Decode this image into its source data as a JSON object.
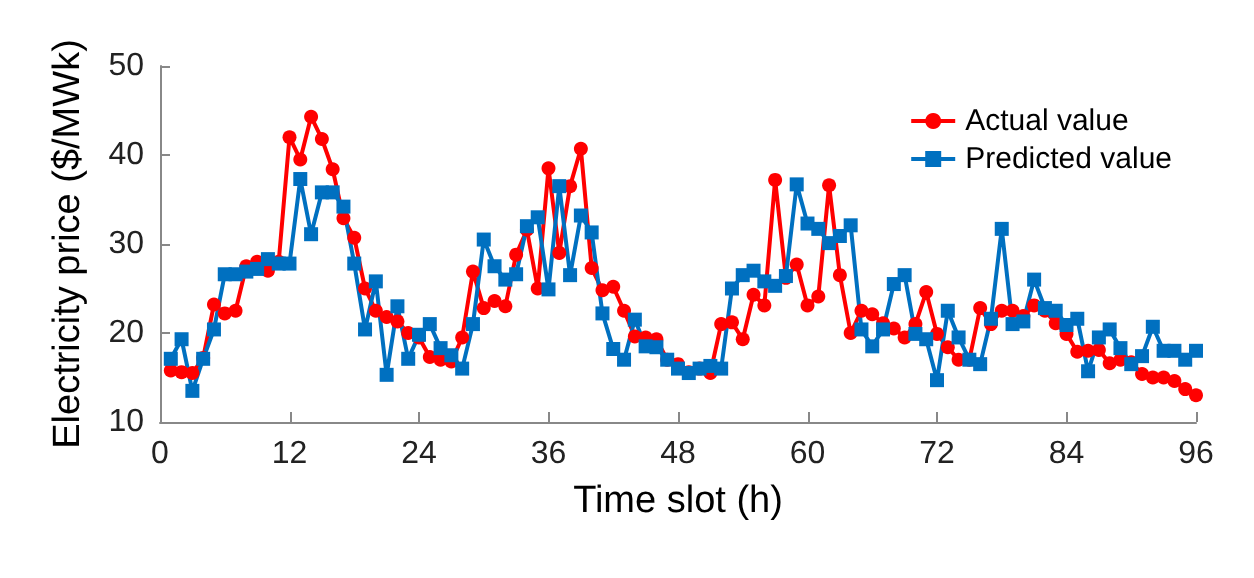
{
  "chart_data": {
    "type": "line",
    "xlabel": "Time slot (h)",
    "ylabel": "Electricity price ($/MWk)",
    "x": [
      1,
      2,
      3,
      4,
      5,
      6,
      7,
      8,
      9,
      10,
      11,
      12,
      13,
      14,
      15,
      16,
      17,
      18,
      19,
      20,
      21,
      22,
      23,
      24,
      25,
      26,
      27,
      28,
      29,
      30,
      31,
      32,
      33,
      34,
      35,
      36,
      37,
      38,
      39,
      40,
      41,
      42,
      43,
      44,
      45,
      46,
      47,
      48,
      49,
      50,
      51,
      52,
      53,
      54,
      55,
      56,
      57,
      58,
      59,
      60,
      61,
      62,
      63,
      64,
      65,
      66,
      67,
      68,
      69,
      70,
      71,
      72,
      73,
      74,
      75,
      76,
      77,
      78,
      79,
      80,
      81,
      82,
      83,
      84,
      85,
      86,
      87,
      88,
      89,
      90,
      91,
      92,
      93,
      94,
      95,
      96
    ],
    "series": [
      {
        "name": "Actual value",
        "color": "#ff0000",
        "marker": "circle",
        "values": [
          15.8,
          15.6,
          15.5,
          17.2,
          23.2,
          22.2,
          22.5,
          27.5,
          28,
          27,
          28,
          42,
          39.5,
          44.3,
          41.8,
          38.4,
          32.9,
          30.7,
          25,
          22.5,
          21.8,
          21.3,
          20,
          19.5,
          17.3,
          17,
          16.8,
          19.5,
          26.9,
          22.8,
          23.6,
          23,
          28.8,
          31.6,
          25,
          38.5,
          29,
          36.5,
          40.7,
          27.3,
          24.8,
          25.2,
          22.5,
          19.6,
          19.5,
          19.3,
          17,
          16.5,
          15.6,
          16,
          15.5,
          21,
          21.2,
          19.3,
          24.3,
          23.1,
          37.2,
          26.2,
          27.7,
          23.1,
          24.1,
          36.6,
          26.5,
          20,
          22.5,
          22.1,
          21.1,
          20.5,
          19.5,
          21,
          24.6,
          19.9,
          18.4,
          17,
          17,
          22.8,
          21,
          22.5,
          22.5,
          21.9,
          23.1,
          22.5,
          21.1,
          19.9,
          17.9,
          18,
          18.1,
          16.6,
          17,
          16.7,
          15.4,
          15,
          15,
          14.6,
          13.7,
          13
        ]
      },
      {
        "name": "Predicted value",
        "color": "#0070c0",
        "marker": "square",
        "values": [
          17.1,
          19.3,
          13.5,
          17.1,
          20.4,
          26.6,
          26.6,
          26.9,
          27.2,
          28.3,
          27.8,
          27.8,
          37.3,
          31.1,
          35.8,
          35.8,
          34.2,
          27.8,
          20.4,
          25.8,
          15.3,
          23,
          17.1,
          19.8,
          21,
          18.3,
          17.5,
          16,
          21,
          30.5,
          27.5,
          26,
          26.6,
          32,
          33,
          24.9,
          36.5,
          26.5,
          33.2,
          31.3,
          22.2,
          18.2,
          17,
          21.5,
          18.5,
          18.4,
          17,
          16,
          15.5,
          16,
          16.3,
          16,
          25,
          26.5,
          27,
          25.8,
          25.3,
          26.4,
          36.7,
          32.3,
          31.7,
          30.1,
          30.9,
          32.1,
          20.4,
          18.5,
          20.4,
          25.5,
          26.5,
          19.9,
          19.3,
          14.7,
          22.5,
          19.5,
          17,
          16.5,
          21.6,
          31.7,
          21,
          21.3,
          26,
          22.8,
          22.5,
          20.9,
          21.6,
          15.7,
          19.5,
          20.4,
          18.3,
          16.5,
          17.4,
          20.7,
          18,
          18,
          17,
          18
        ]
      }
    ],
    "xlim": [
      0,
      96
    ],
    "xticks": [
      0,
      12,
      24,
      36,
      48,
      60,
      72,
      84,
      96
    ],
    "ylim": [
      10,
      50
    ],
    "yticks": [
      10,
      20,
      30,
      40,
      50
    ],
    "grid": false,
    "legend": "top right",
    "line_style": "solid"
  }
}
